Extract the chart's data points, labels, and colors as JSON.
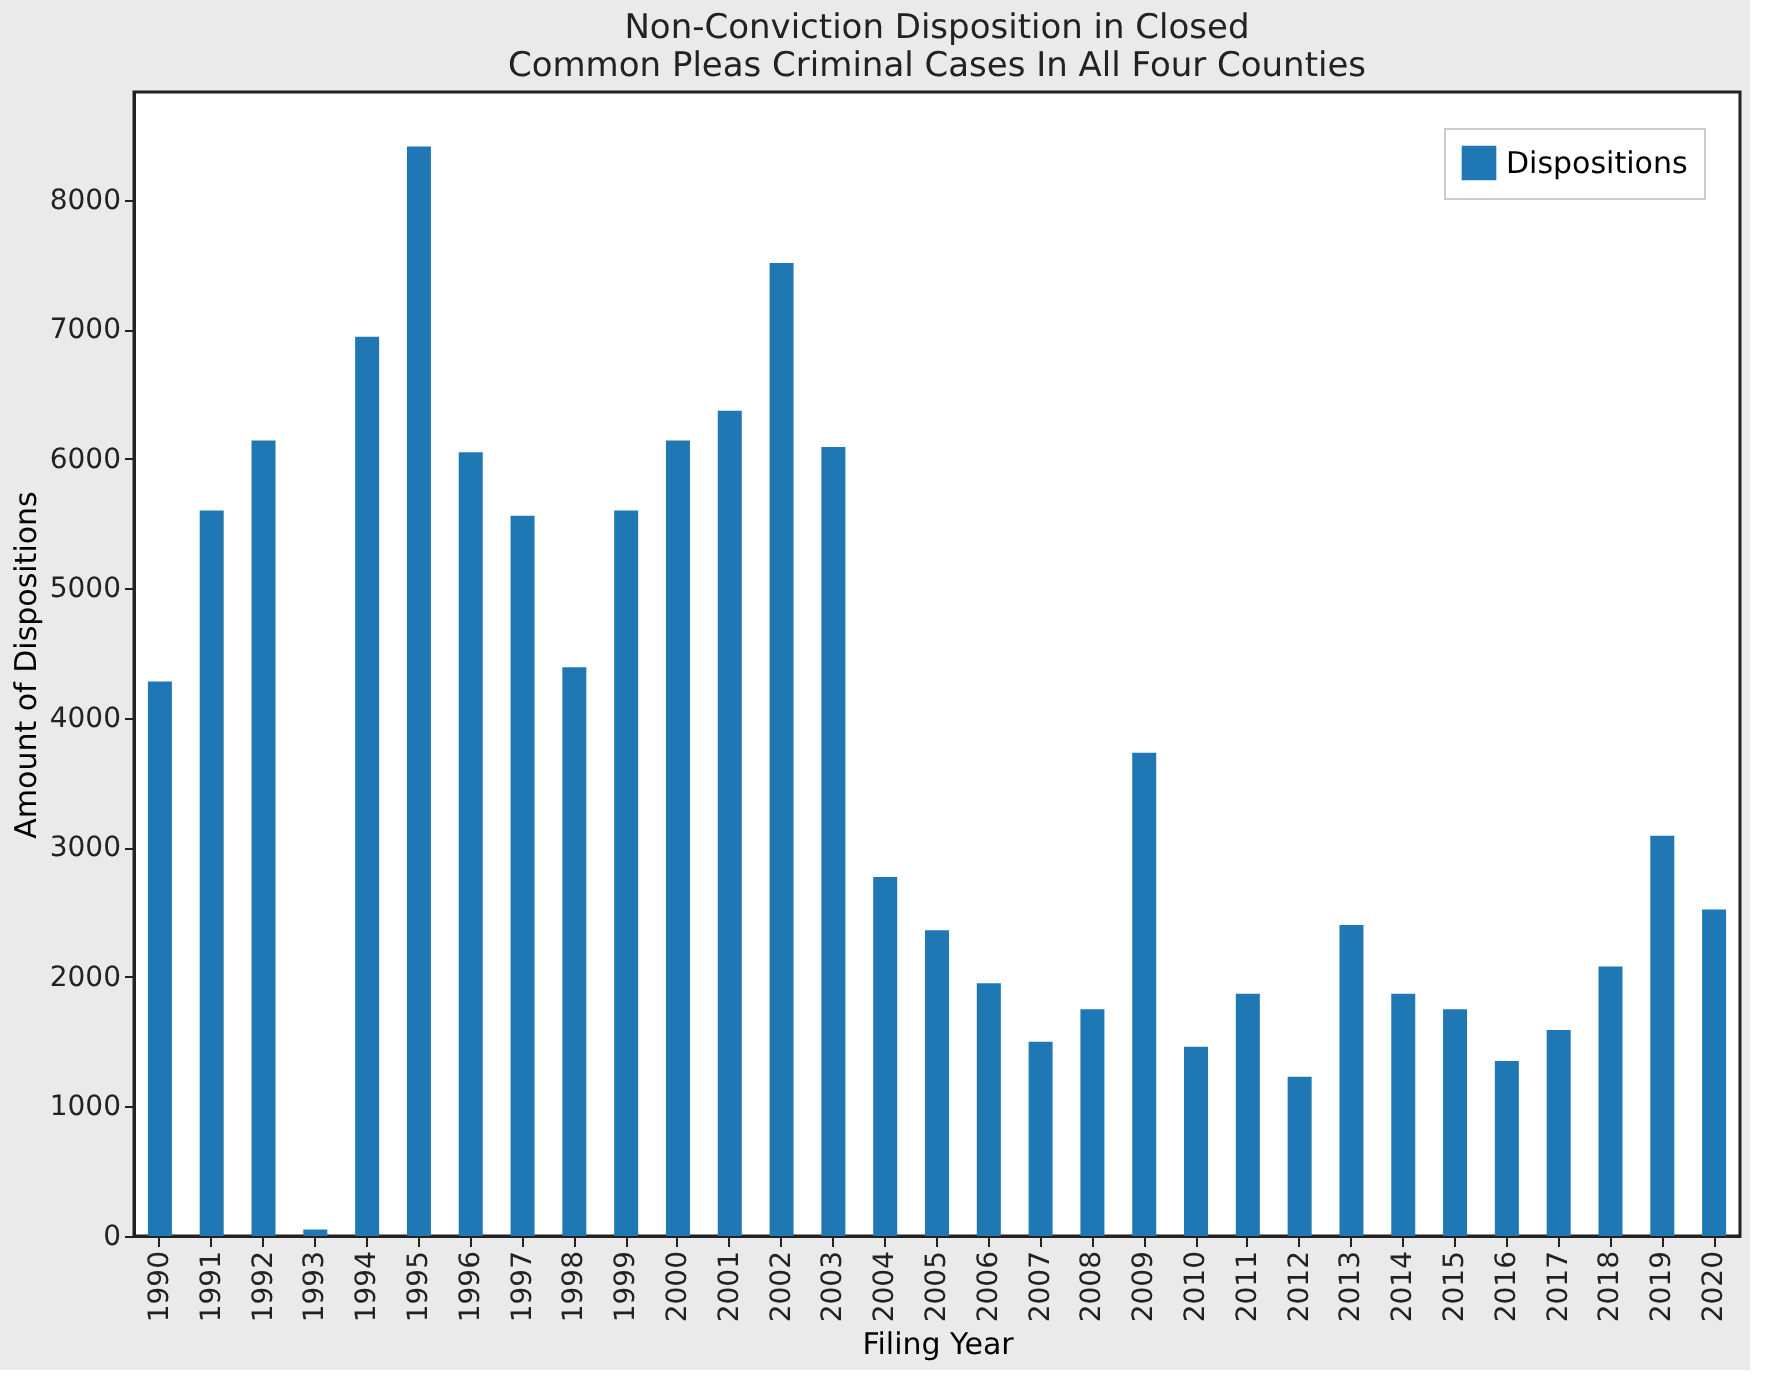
{
  "chart_data": {
    "type": "bar",
    "title": [
      "Non-Conviction Disposition in Closed",
      "Common Pleas Criminal Cases In All Four Counties"
    ],
    "xlabel": "Filing Year",
    "ylabel": "Amount of Dispositions",
    "categories": [
      "1990",
      "1991",
      "1992",
      "1993",
      "1994",
      "1995",
      "1996",
      "1997",
      "1998",
      "1999",
      "2000",
      "2001",
      "2002",
      "2003",
      "2004",
      "2005",
      "2006",
      "2007",
      "2008",
      "2009",
      "2010",
      "2011",
      "2012",
      "2013",
      "2014",
      "2015",
      "2016",
      "2017",
      "2018",
      "2019",
      "2020"
    ],
    "series": [
      {
        "name": "Dispositions",
        "color": "#1f77b4",
        "values": [
          4280,
          5600,
          6140,
          50,
          6940,
          8410,
          6050,
          5560,
          4390,
          5600,
          6140,
          6370,
          7510,
          6090,
          2770,
          2360,
          1950,
          1500,
          1750,
          3730,
          1460,
          1870,
          1230,
          2400,
          1870,
          1750,
          1350,
          1590,
          2080,
          3090,
          2520
        ]
      }
    ],
    "ylim": [
      0,
      8830
    ],
    "yticks": [
      0,
      1000,
      2000,
      3000,
      4000,
      5000,
      6000,
      7000,
      8000
    ],
    "grid": false,
    "legend": "top right"
  }
}
